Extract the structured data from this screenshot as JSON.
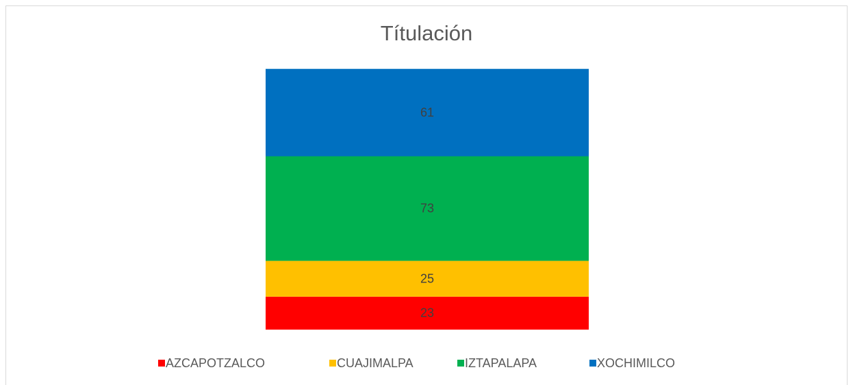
{
  "chart_data": {
    "type": "stacked_bar",
    "title": "Títulación",
    "categories": [
      null
    ],
    "series": [
      {
        "name": "AZCAPOTZALCO",
        "color": "#ff0000",
        "values": [
          23
        ]
      },
      {
        "name": "CUAJIMALPA",
        "color": "#ffc000",
        "values": [
          25
        ]
      },
      {
        "name": "IZTAPALAPA",
        "color": "#00b050",
        "values": [
          73
        ]
      },
      {
        "name": "XOCHIMILCO",
        "color": "#0070c0",
        "values": [
          61
        ]
      }
    ],
    "ylim": [
      0,
      200
    ],
    "legend": "bottom"
  }
}
